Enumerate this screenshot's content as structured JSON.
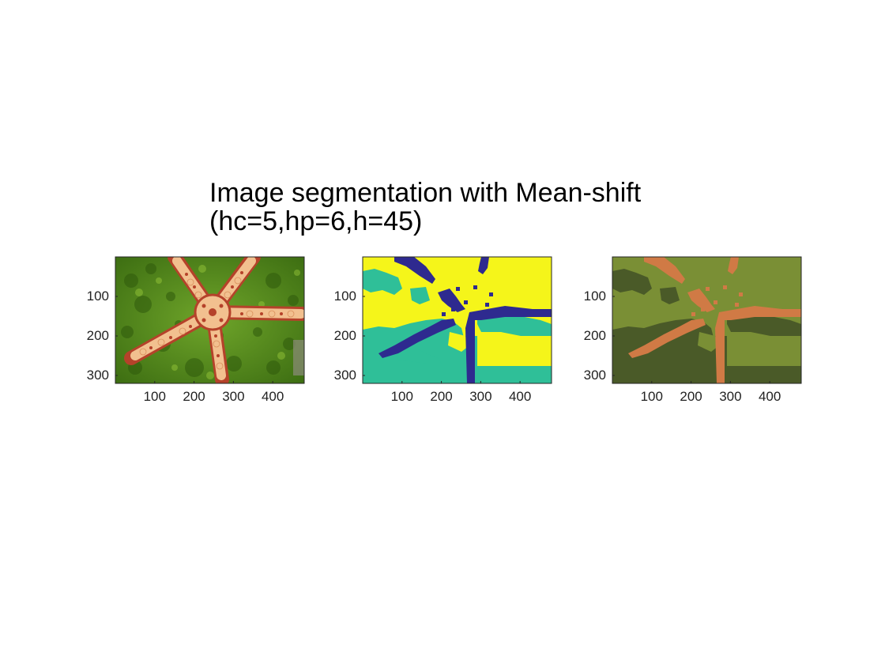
{
  "figure": {
    "title_line1": "Image segmentation with Mean-shift",
    "title_line2": "(hc=5,hp=6,h=45)"
  },
  "panels": [
    {
      "name": "original-starfish-image",
      "kind": "photo",
      "colors": {
        "background": "#4f8a1c",
        "background_dark": "#2f5a0c",
        "star_body": "#f2c08f",
        "star_spots": "#b5422a",
        "star_outline": "#8a2d18"
      }
    },
    {
      "name": "label-map",
      "kind": "segmentation",
      "colors": {
        "background": "#f5f51a",
        "region_b": "#2fbf98",
        "region_c": "#2e2a8f"
      }
    },
    {
      "name": "mean-color-map",
      "kind": "segmentation",
      "colors": {
        "background": "#7a8f35",
        "region_b": "#4a5a28",
        "region_c": "#d07a45"
      }
    }
  ],
  "axes": {
    "x_ticks": [
      100,
      200,
      300,
      400
    ],
    "y_ticks": [
      100,
      200,
      300
    ],
    "x_range": [
      0,
      480
    ],
    "y_range": [
      0,
      320
    ]
  }
}
